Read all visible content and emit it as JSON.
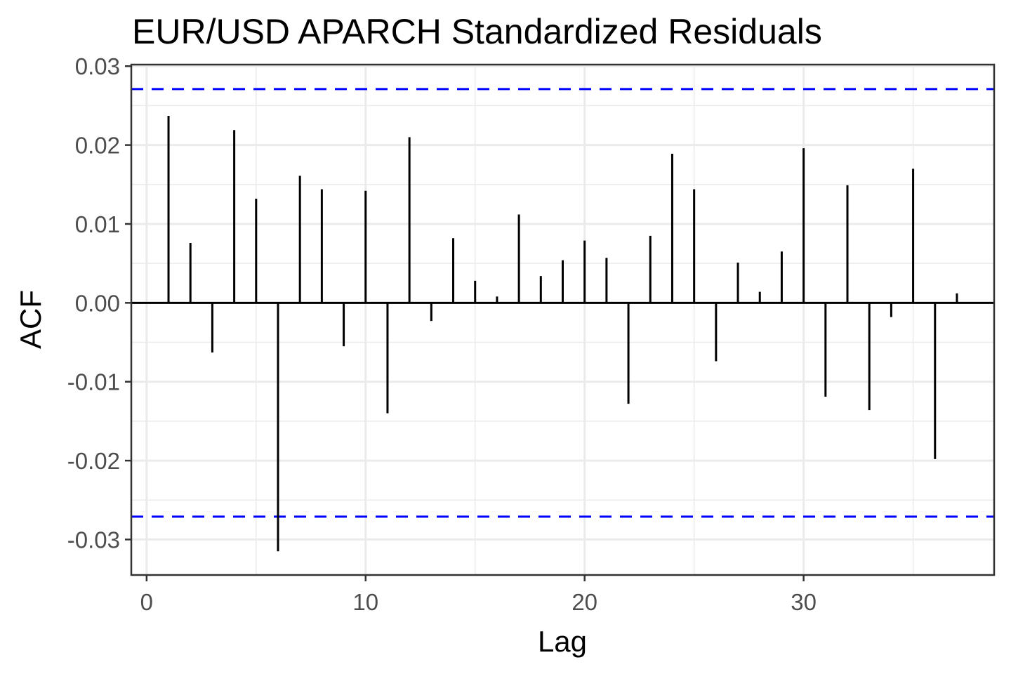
{
  "chart_data": {
    "type": "bar",
    "title": "EUR/USD APARCH Standardized Residuals",
    "xlabel": "Lag",
    "ylabel": "ACF",
    "xlim": [
      -0.7,
      38.7
    ],
    "ylim": [
      -0.0345,
      0.0302
    ],
    "x_ticks": [
      0,
      10,
      20,
      30
    ],
    "x_tick_labels": [
      "0",
      "10",
      "20",
      "30"
    ],
    "y_ticks": [
      0.03,
      0.02,
      0.01,
      0.0,
      -0.01,
      -0.02,
      -0.03
    ],
    "y_tick_labels": [
      "0.03",
      "0.02",
      "0.01",
      "0.00",
      "-0.01",
      "-0.02",
      "-0.03"
    ],
    "grid": true,
    "lags": [
      1,
      2,
      3,
      4,
      5,
      6,
      7,
      8,
      9,
      10,
      11,
      12,
      13,
      14,
      15,
      16,
      17,
      18,
      19,
      20,
      21,
      22,
      23,
      24,
      25,
      26,
      27,
      28,
      29,
      30,
      31,
      32,
      33,
      34,
      35,
      36,
      37
    ],
    "acf": [
      0.0237,
      0.0076,
      -0.0063,
      0.0219,
      0.0132,
      -0.0315,
      0.0161,
      0.0144,
      -0.0055,
      0.0142,
      -0.014,
      0.021,
      -0.0023,
      0.0082,
      0.0028,
      0.0008,
      0.0112,
      0.0034,
      0.0054,
      0.0079,
      0.0057,
      -0.0128,
      0.0085,
      0.0189,
      0.0144,
      -0.0074,
      0.0051,
      0.0014,
      0.0065,
      0.0196,
      -0.0119,
      0.0149,
      -0.0136,
      -0.0018,
      0.017,
      -0.0198,
      0.0012
    ],
    "confidence_bounds": [
      0.0271,
      -0.0271
    ],
    "colors": {
      "bars": "#000000",
      "bounds": "#0000ff",
      "panel_border": "#333333",
      "grid": "#ebebeb"
    }
  }
}
